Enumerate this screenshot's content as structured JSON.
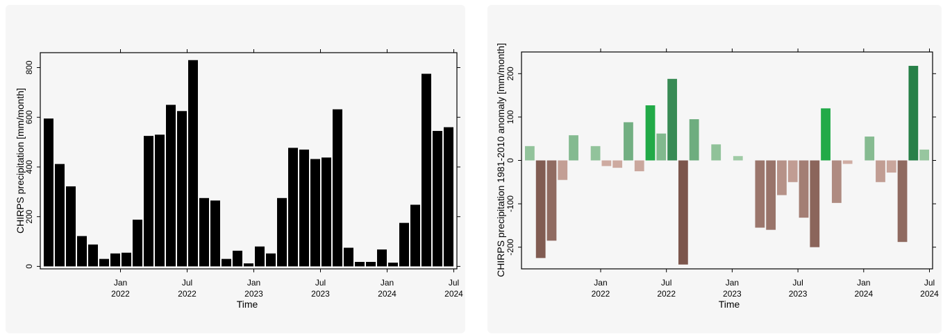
{
  "chart_data": [
    {
      "type": "bar",
      "xlabel": "Time",
      "ylabel": "CHIRPS precipitation [mm/month]",
      "ylim": [
        -10,
        860
      ],
      "yticks": [
        0,
        200,
        400,
        600,
        800
      ],
      "xticks": [
        {
          "month": "Jan",
          "year": "2022",
          "index": 7
        },
        {
          "month": "Jul",
          "year": "2022",
          "index": 13
        },
        {
          "month": "Jan",
          "year": "2023",
          "index": 19
        },
        {
          "month": "Jul",
          "year": "2023",
          "index": 25
        },
        {
          "month": "Jan",
          "year": "2024",
          "index": 31
        },
        {
          "month": "Jul",
          "year": "2024",
          "index": 37
        }
      ],
      "first_month": "Jun 2021",
      "bar_color": "#000000",
      "values": [
        595,
        412,
        322,
        122,
        88,
        30,
        52,
        55,
        188,
        525,
        530,
        650,
        625,
        830,
        275,
        265,
        30,
        63,
        12,
        80,
        52,
        275,
        477,
        470,
        432,
        438,
        632,
        75,
        18,
        18,
        68,
        15,
        175,
        248,
        775,
        545,
        560
      ]
    },
    {
      "type": "bar",
      "xlabel": "Time",
      "ylabel": "CHIRPS precipitation 1981-2010 anomaly [mm/month]",
      "ylim": [
        -250,
        250
      ],
      "yticks": [
        -200,
        -100,
        0,
        100,
        200
      ],
      "xticks": [
        {
          "month": "Jan",
          "year": "2022",
          "index": 7
        },
        {
          "month": "Jul",
          "year": "2022",
          "index": 13
        },
        {
          "month": "Jan",
          "year": "2023",
          "index": 19
        },
        {
          "month": "Jul",
          "year": "2023",
          "index": 25
        },
        {
          "month": "Jan",
          "year": "2024",
          "index": 31
        },
        {
          "month": "Jul",
          "year": "2024",
          "index": 37
        }
      ],
      "first_month": "Jun 2021",
      "color_scale": "brown (dry) to green (wet), diverging",
      "values": [
        33,
        -225,
        -185,
        -45,
        58,
        0,
        33,
        -13,
        -17,
        88,
        -25,
        127,
        62,
        188,
        -240,
        95,
        0,
        37,
        0,
        10,
        0,
        -155,
        -160,
        -80,
        -50,
        -132,
        -200,
        120,
        -98,
        -8,
        0,
        55,
        -50,
        -28,
        -188,
        218,
        25
      ]
    }
  ]
}
